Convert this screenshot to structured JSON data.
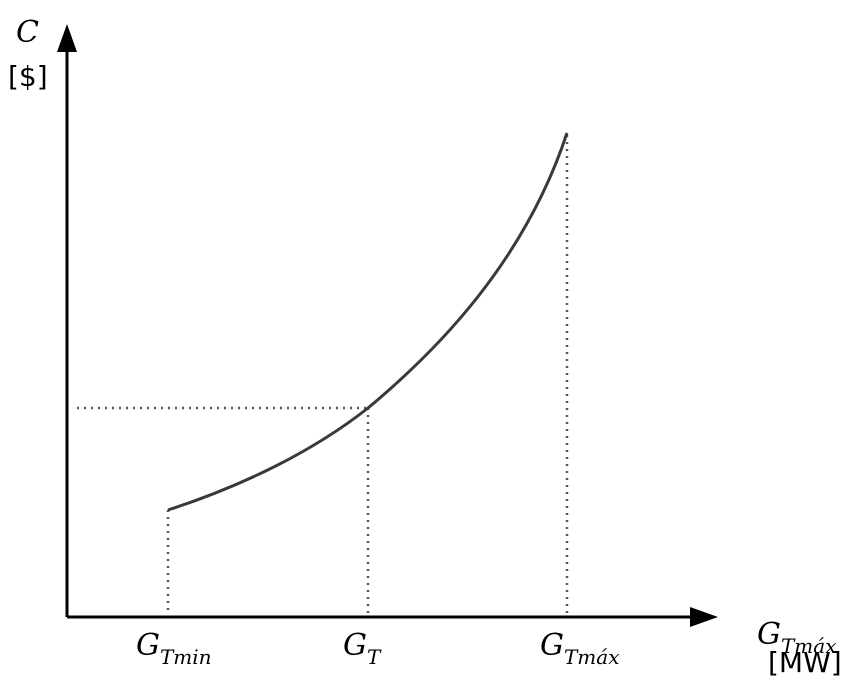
{
  "y_axis": {
    "symbol": "C",
    "unit": "[$]"
  },
  "x_axis": {
    "symbol_main": "G",
    "symbol_sub": "Tmáx",
    "unit": "[MW]"
  },
  "ticks": [
    {
      "main": "G",
      "sub": "Tmin"
    },
    {
      "main": "G",
      "sub": "T"
    },
    {
      "main": "G",
      "sub": "Tmáx"
    }
  ],
  "colors": {
    "line": "#000000",
    "curve": "#3a3a3a",
    "guide": "#555555"
  }
}
